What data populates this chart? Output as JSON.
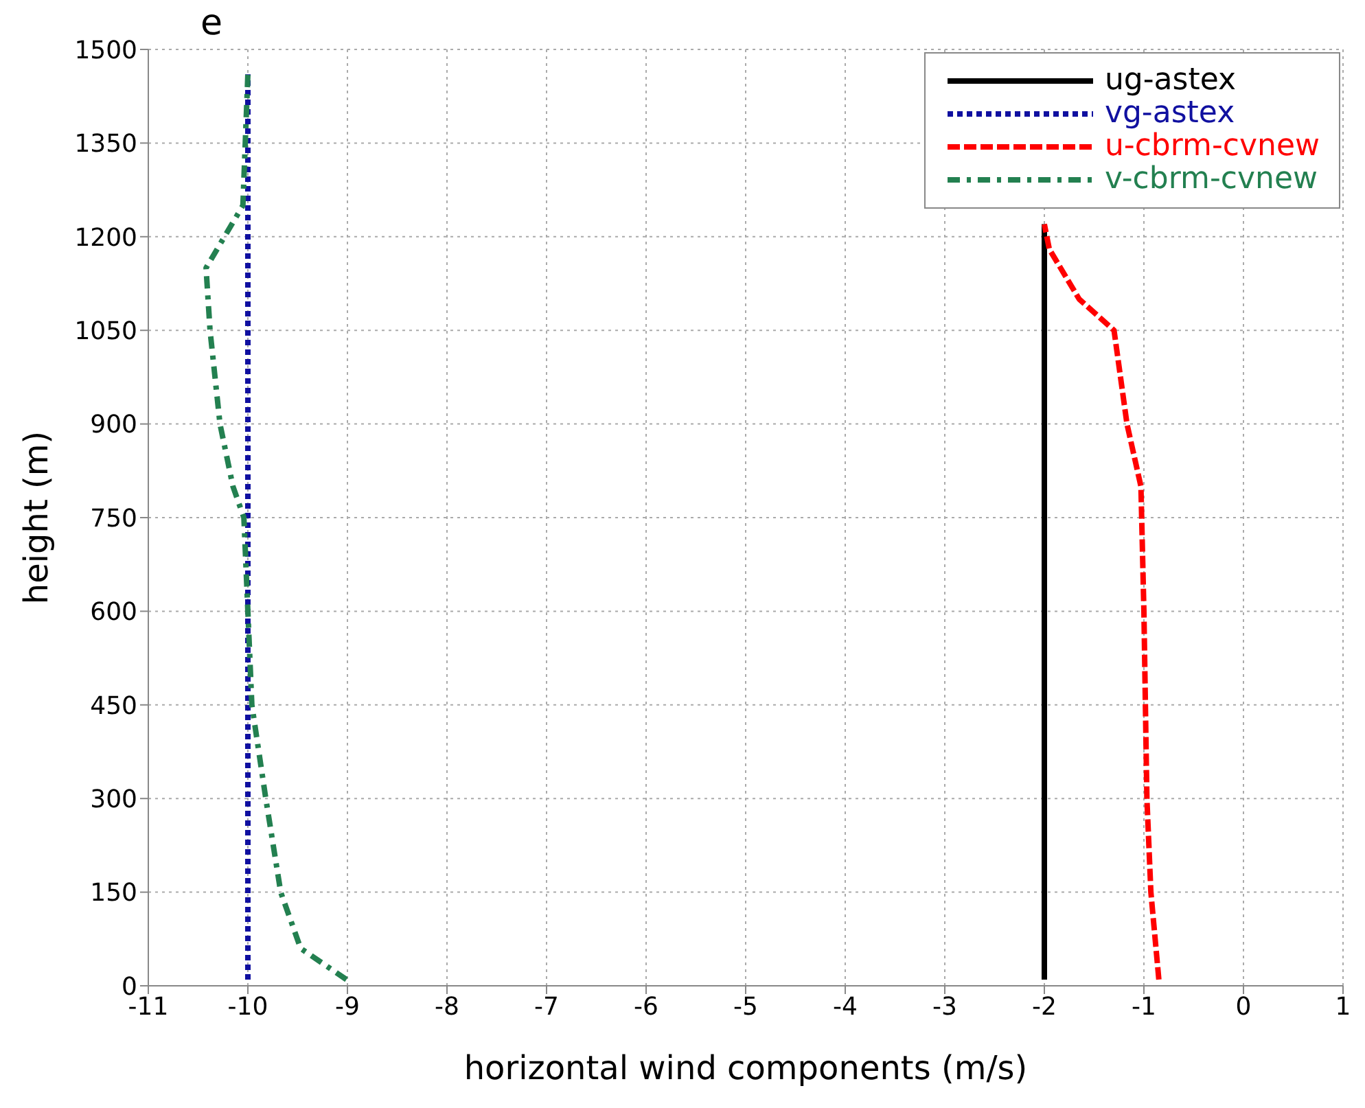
{
  "chart_data": {
    "type": "line",
    "title": "e",
    "xlabel": "horizontal wind components (m/s)",
    "ylabel": "height (m)",
    "xlim": [
      -11,
      1
    ],
    "xticks": [
      -11,
      -10,
      -9,
      -8,
      -7,
      -6,
      -5,
      -4,
      -3,
      -2,
      -1,
      0,
      1
    ],
    "ylim": [
      0,
      1500
    ],
    "yticks": [
      0,
      150,
      300,
      450,
      600,
      750,
      900,
      1050,
      1200,
      1350,
      1500
    ],
    "grid": true,
    "legend": "top right",
    "marker": "none",
    "series": [
      {
        "name": "ug-astex",
        "color": "#000000",
        "line_style": "solid",
        "x": [
          -2,
          -2
        ],
        "values": [
          10,
          1220
        ]
      },
      {
        "name": "vg-astex",
        "color": "#1010a0",
        "line_style": "dotted",
        "x": [
          -10,
          -10
        ],
        "values": [
          10,
          1460
        ]
      },
      {
        "name": "u-cbrm-cvnew",
        "color": "#ff0000",
        "line_style": "dashed",
        "x": [
          -0.85,
          -0.93,
          -0.97,
          -1.0,
          -1.03,
          -1.17,
          -1.3,
          -1.65,
          -1.95,
          -2.0
        ],
        "values": [
          10,
          150,
          300,
          600,
          800,
          900,
          1050,
          1100,
          1180,
          1220
        ]
      },
      {
        "name": "v-cbrm-cvnew",
        "color": "#238050",
        "line_style": "dashdot",
        "x": [
          -9.01,
          -9.47,
          -9.67,
          -9.82,
          -9.96,
          -10.0,
          -10.04,
          -10.15,
          -10.28,
          -10.38,
          -10.42,
          -10.05,
          -10.0
        ],
        "values": [
          10,
          60,
          150,
          300,
          450,
          600,
          750,
          800,
          900,
          1050,
          1150,
          1250,
          1460
        ]
      }
    ]
  }
}
